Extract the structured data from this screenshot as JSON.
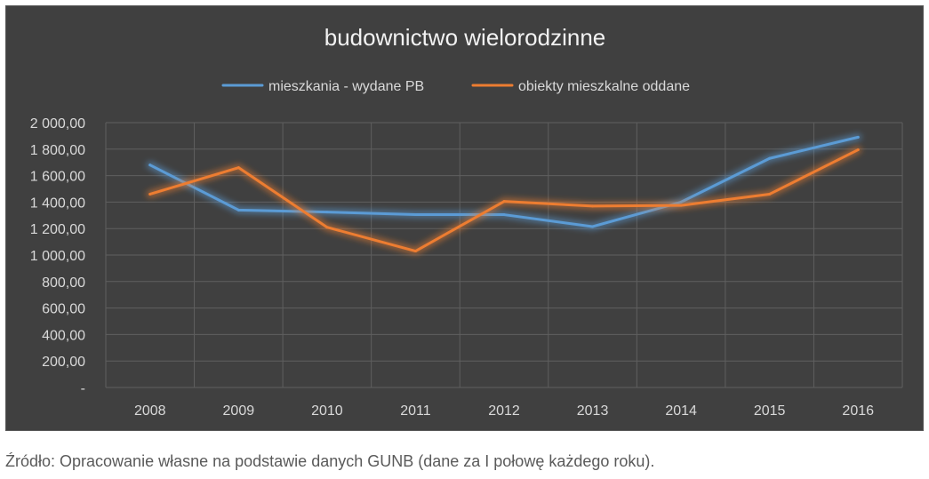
{
  "chart_data": {
    "type": "line",
    "title": "budownictwo wielorodzinne",
    "categories": [
      "2008",
      "2009",
      "2010",
      "2011",
      "2012",
      "2013",
      "2014",
      "2015",
      "2016"
    ],
    "y_tick_labels": [
      "-",
      "200,00",
      "400,00",
      "600,00",
      "800,00",
      "1 000,00",
      "1 200,00",
      "1 400,00",
      "1 600,00",
      "1 800,00",
      "2 000,00"
    ],
    "ylim": [
      0,
      2000
    ],
    "grid": true,
    "legend_position": "top",
    "series": [
      {
        "name": "mieszkania - wydane PB",
        "color": "#5b9bd5",
        "values": [
          1680,
          1340,
          1325,
          1305,
          1305,
          1215,
          1400,
          1730,
          1890
        ]
      },
      {
        "name": "obiekty mieszkalne oddane",
        "color": "#ed7d31",
        "values": [
          1460,
          1660,
          1210,
          1030,
          1405,
          1370,
          1375,
          1460,
          1795
        ]
      }
    ],
    "background_color": "#404040",
    "grid_color": "#5f5f5f"
  },
  "source_note": "Źródło: Opracowanie własne na podstawie danych GUNB (dane za I połowę każdego roku)."
}
